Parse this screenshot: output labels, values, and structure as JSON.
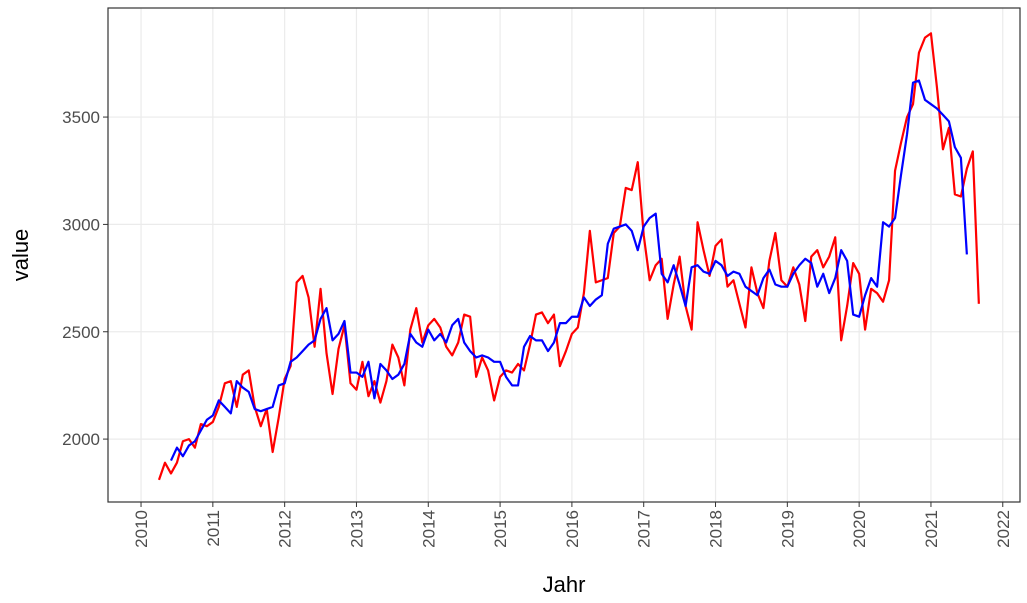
{
  "chart_data": {
    "type": "line",
    "x_label": "Jahr",
    "y_label": "value",
    "x": [
      2010.25,
      2010.333,
      2010.417,
      2010.5,
      2010.583,
      2010.667,
      2010.75,
      2010.833,
      2010.917,
      2011,
      2011.083,
      2011.167,
      2011.25,
      2011.333,
      2011.417,
      2011.5,
      2011.583,
      2011.667,
      2011.75,
      2011.833,
      2011.917,
      2012,
      2012.083,
      2012.167,
      2012.25,
      2012.333,
      2012.417,
      2012.5,
      2012.583,
      2012.667,
      2012.75,
      2012.833,
      2012.917,
      2013,
      2013.083,
      2013.167,
      2013.25,
      2013.333,
      2013.417,
      2013.5,
      2013.583,
      2013.667,
      2013.75,
      2013.833,
      2013.917,
      2014,
      2014.083,
      2014.167,
      2014.25,
      2014.333,
      2014.417,
      2014.5,
      2014.583,
      2014.667,
      2014.75,
      2014.833,
      2014.917,
      2015,
      2015.083,
      2015.167,
      2015.25,
      2015.333,
      2015.417,
      2015.5,
      2015.583,
      2015.667,
      2015.75,
      2015.833,
      2015.917,
      2016,
      2016.083,
      2016.167,
      2016.25,
      2016.333,
      2016.417,
      2016.5,
      2016.583,
      2016.667,
      2016.75,
      2016.833,
      2016.917,
      2017,
      2017.083,
      2017.167,
      2017.25,
      2017.333,
      2017.417,
      2017.5,
      2017.583,
      2017.667,
      2017.75,
      2017.833,
      2017.917,
      2018,
      2018.083,
      2018.167,
      2018.25,
      2018.333,
      2018.417,
      2018.5,
      2018.583,
      2018.667,
      2018.75,
      2018.833,
      2018.917,
      2019,
      2019.083,
      2019.167,
      2019.25,
      2019.333,
      2019.417,
      2019.5,
      2019.583,
      2019.667,
      2019.75,
      2019.833,
      2019.917,
      2020,
      2020.083,
      2020.167,
      2020.25,
      2020.333,
      2020.417,
      2020.5,
      2020.583,
      2020.667,
      2020.75,
      2020.833,
      2020.917,
      2021,
      2021.083,
      2021.167,
      2021.25,
      2021.333,
      2021.417,
      2021.5,
      2021.583,
      2021.667
    ],
    "series": [
      {
        "color": "#ff0000",
        "values": [
          1810,
          1890,
          1840,
          1890,
          1990,
          2000,
          1960,
          2070,
          2060,
          2080,
          2150,
          2260,
          2270,
          2150,
          2300,
          2320,
          2150,
          2060,
          2140,
          1940,
          2100,
          2280,
          2340,
          2730,
          2760,
          2660,
          2430,
          2700,
          2400,
          2210,
          2420,
          2530,
          2260,
          2230,
          2360,
          2200,
          2270,
          2170,
          2270,
          2440,
          2380,
          2250,
          2510,
          2610,
          2450,
          2530,
          2560,
          2520,
          2430,
          2390,
          2450,
          2580,
          2570,
          2290,
          2380,
          2320,
          2180,
          2290,
          2320,
          2310,
          2350,
          2320,
          2440,
          2580,
          2590,
          2540,
          2580,
          2340,
          2410,
          2490,
          2520,
          2680,
          2970,
          2730,
          2740,
          2750,
          2960,
          2990,
          3170,
          3160,
          3290,
          2950,
          2740,
          2810,
          2840,
          2560,
          2720,
          2850,
          2620,
          2510,
          3010,
          2880,
          2760,
          2900,
          2930,
          2710,
          2740,
          2630,
          2520,
          2800,
          2680,
          2610,
          2830,
          2960,
          2740,
          2710,
          2800,
          2720,
          2550,
          2850,
          2880,
          2800,
          2850,
          2940,
          2460,
          2620,
          2820,
          2770,
          2510,
          2700,
          2680,
          2640,
          2740,
          3250,
          3380,
          3500,
          3560,
          3800,
          3870,
          3890,
          3640,
          3350,
          3450,
          3140,
          3130,
          3260,
          3340,
          2630
        ]
      },
      {
        "color": "#0000ff",
        "values": [
          null,
          null,
          1900,
          1960,
          1920,
          1970,
          1990,
          2040,
          2090,
          2110,
          2180,
          2150,
          2120,
          2270,
          2240,
          2220,
          2140,
          2130,
          2140,
          2150,
          2250,
          2260,
          2360,
          2380,
          2410,
          2440,
          2460,
          2560,
          2610,
          2460,
          2490,
          2550,
          2310,
          2310,
          2290,
          2360,
          2190,
          2350,
          2320,
          2280,
          2300,
          2350,
          2490,
          2450,
          2430,
          2510,
          2460,
          2490,
          2450,
          2530,
          2560,
          2450,
          2410,
          2380,
          2390,
          2380,
          2360,
          2360,
          2290,
          2250,
          2250,
          2430,
          2480,
          2460,
          2460,
          2410,
          2450,
          2540,
          2540,
          2570,
          2570,
          2660,
          2620,
          2650,
          2670,
          2910,
          2980,
          2990,
          3000,
          2970,
          2880,
          2990,
          3030,
          3050,
          2770,
          2730,
          2810,
          2720,
          2620,
          2800,
          2810,
          2780,
          2770,
          2830,
          2810,
          2760,
          2780,
          2770,
          2710,
          2690,
          2670,
          2750,
          2790,
          2720,
          2710,
          2710,
          2770,
          2810,
          2840,
          2820,
          2710,
          2770,
          2680,
          2750,
          2880,
          2830,
          2580,
          2570,
          2670,
          2750,
          2710,
          3010,
          2990,
          3030,
          3230,
          3420,
          3660,
          3670,
          3580,
          3560,
          3540,
          3510,
          3480,
          3360,
          3310,
          2860,
          null,
          null
        ]
      }
    ],
    "xlim": [
      2009.54,
      2022.24
    ],
    "ylim": [
      1707,
      4008
    ],
    "xticks": [
      2010,
      2011,
      2012,
      2013,
      2014,
      2015,
      2016,
      2017,
      2018,
      2019,
      2020,
      2021,
      2022
    ],
    "yticks": [
      2000,
      2500,
      3000,
      3500
    ],
    "grid": true
  }
}
